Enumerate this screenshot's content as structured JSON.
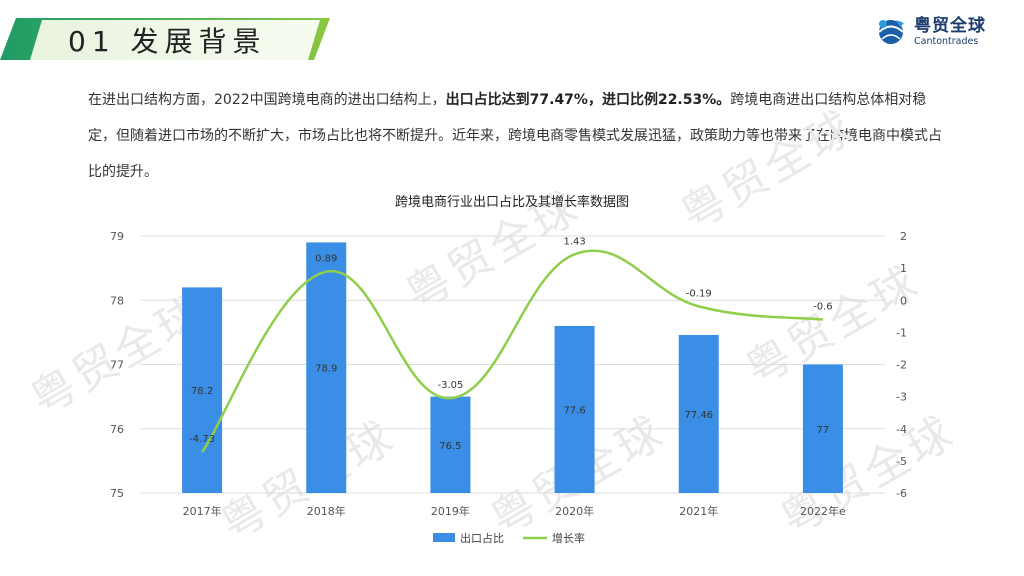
{
  "header": {
    "section_title": "01 发展背景",
    "logo_cn": "粤贸全球",
    "logo_en": "Cantontrades"
  },
  "paragraph": {
    "part1": "在进出口结构方面，2022中国跨境电商的进出口结构上，",
    "bold": "出口占比达到77.47%，进口比例22.53%。",
    "part2": "跨境电商进出口结构总体相对稳定，但随着进口市场的不断扩大，市场占比也将不断提升。近年来，跨境电商零售模式发展迅猛，政策助力等也带来了在跨境电商中模式占比的提升。"
  },
  "watermark": "粤贸全球",
  "chart_data": {
    "type": "bar",
    "title": "跨境电商行业出口占比及其增长率数据图",
    "categories": [
      "2017年",
      "2018年",
      "2019年",
      "2020年",
      "2021年",
      "2022年e"
    ],
    "series": [
      {
        "name": "出口占比",
        "kind": "bar",
        "axis": "left",
        "values": [
          78.2,
          78.9,
          76.5,
          77.6,
          77.46,
          77
        ],
        "labels": [
          "78.2",
          "78.9",
          "76.5",
          "77.6",
          "77.46",
          "77"
        ],
        "color": "#3a8ee6"
      },
      {
        "name": "增长率",
        "kind": "line",
        "axis": "right",
        "values": [
          -4.73,
          0.89,
          -3.05,
          1.43,
          -0.19,
          -0.6
        ],
        "labels": [
          "-4.73",
          "0.89",
          "-3.05",
          "1.43",
          "-0.19",
          "-0.6"
        ],
        "color": "#8fce4a"
      }
    ],
    "left_axis": {
      "ylim": [
        75,
        79
      ],
      "ticks": [
        "75",
        "76",
        "77",
        "78",
        "79"
      ]
    },
    "right_axis": {
      "ylim": [
        -6,
        2
      ],
      "ticks": [
        "-6",
        "-5",
        "-4",
        "-3",
        "-2",
        "-1",
        "0",
        "1",
        "2"
      ]
    },
    "grid": true,
    "legend_position": "bottom"
  }
}
